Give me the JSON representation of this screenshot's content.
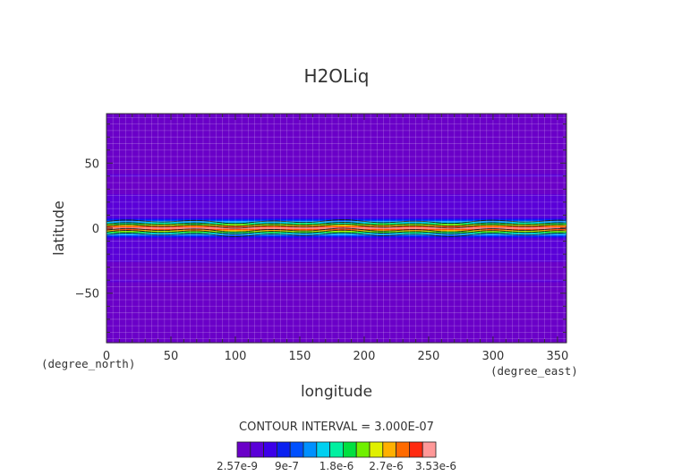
{
  "chart_data": {
    "type": "heatmap",
    "title": "H2OLiq",
    "xlabel": "longitude",
    "ylabel": "latitude",
    "x_unit_label": "(degree_east)",
    "y_unit_label": "(degree_north)",
    "xlim": [
      0,
      357
    ],
    "ylim": [
      -88,
      88
    ],
    "x_ticks": [
      0,
      50,
      100,
      150,
      200,
      250,
      300,
      350
    ],
    "y_ticks": [
      -50,
      0,
      50
    ],
    "grid": true,
    "contour_interval_text": "CONTOUR INTERVAL = 3.000E-07",
    "colorbar": {
      "labels": [
        "2.57e-9",
        "9e-7",
        "1.8e-6",
        "2.7e-6",
        "3.53e-6"
      ],
      "colors": [
        "#6a00c8",
        "#5a00d8",
        "#3c00e8",
        "#0a20f0",
        "#0050ff",
        "#0090ff",
        "#00d0f0",
        "#00f0a0",
        "#00e040",
        "#70f000",
        "#e0f000",
        "#ffb000",
        "#ff6a00",
        "#ff2a10",
        "#ff9898"
      ]
    },
    "latitude_profile": [
      {
        "lat": 88,
        "value": 0.0
      },
      {
        "lat": 50,
        "value": 0.0
      },
      {
        "lat": 45,
        "value": 2e-07
      },
      {
        "lat": 40,
        "value": 2.5e-07
      },
      {
        "lat": 35,
        "value": 3e-08
      },
      {
        "lat": 30,
        "value": 3e-08
      },
      {
        "lat": 25,
        "value": 3e-07
      },
      {
        "lat": 15,
        "value": 3.5e-07
      },
      {
        "lat": 8,
        "value": 4.5e-07
      },
      {
        "lat": 6,
        "value": 9.5e-07
      },
      {
        "lat": 4,
        "value": 1.6e-06
      },
      {
        "lat": 2,
        "value": 2.6e-06
      },
      {
        "lat": 0,
        "value": 3.5e-06
      },
      {
        "lat": -2,
        "value": 2.6e-06
      },
      {
        "lat": -4,
        "value": 1.6e-06
      },
      {
        "lat": -6,
        "value": 9.5e-07
      },
      {
        "lat": -8,
        "value": 4.5e-07
      },
      {
        "lat": -15,
        "value": 3.5e-07
      },
      {
        "lat": -25,
        "value": 3e-07
      },
      {
        "lat": -30,
        "value": 3e-08
      },
      {
        "lat": -36,
        "value": 3e-08
      },
      {
        "lat": -40,
        "value": 2.5e-07
      },
      {
        "lat": -45,
        "value": 2e-07
      },
      {
        "lat": -50,
        "value": 0.0
      },
      {
        "lat": -88,
        "value": 0.0
      }
    ]
  }
}
